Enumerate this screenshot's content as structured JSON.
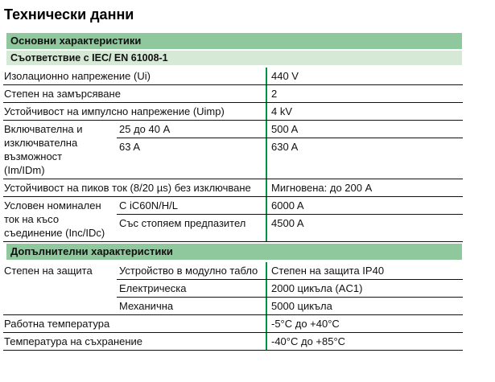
{
  "page": {
    "title": "Технически данни"
  },
  "colors": {
    "section_header_bg": "#8ec89c",
    "subheader_bg": "#d6e9d7",
    "value_divider_green": "#009540",
    "text": "#111111",
    "line": "#111111",
    "page_bg": "#ffffff"
  },
  "sections": [
    {
      "header": "Основни характеристики",
      "subheader": "Съответствие с IEC/ EN 61008-1",
      "rows": [
        {
          "type": "simple",
          "label": "Изолационно напрежение (Ui)",
          "value": "440 V"
        },
        {
          "type": "simple",
          "label": "Степен на замърсяване",
          "value": "2"
        },
        {
          "type": "simple",
          "label": "Устойчивост на импулсно напрежение (Uimp)",
          "value": "4 kV"
        },
        {
          "type": "group",
          "label": "Включвателна и изключвателна възможност (Im/IDm)",
          "subrows": [
            {
              "mid": "25 до 40 A",
              "value": "500 A"
            },
            {
              "mid": "63 A",
              "value": "630 A"
            }
          ]
        },
        {
          "type": "simple",
          "label": "Устойчивост на пиков ток (8/20 µs) без изключване",
          "value": "Мигновена: до 200 A"
        },
        {
          "type": "group",
          "label": "Условен номинален ток на късо съединение (Inc/IDc)",
          "subrows": [
            {
              "mid": "С iC60N/H/L",
              "value": "6000 A"
            },
            {
              "mid": "Със стопяем предпазител",
              "value": "4500 A"
            }
          ]
        }
      ]
    },
    {
      "header": "Допълнителни характеристики",
      "rows": [
        {
          "type": "group",
          "label": "Степен на защита",
          "subrows": [
            {
              "mid": "Устройство в модулно табло",
              "value": "Степен на защита IP40"
            },
            {
              "mid": "Електрическа",
              "value": "2000 цикъла (AC1)"
            },
            {
              "mid": "Механична",
              "value": "5000 цикъла"
            }
          ]
        },
        {
          "type": "simple",
          "label": "Работна температура",
          "value": "-5°C до +40°C"
        },
        {
          "type": "simple",
          "label": "Температура на съхранение",
          "value": "-40°C до +85°C"
        }
      ]
    }
  ]
}
